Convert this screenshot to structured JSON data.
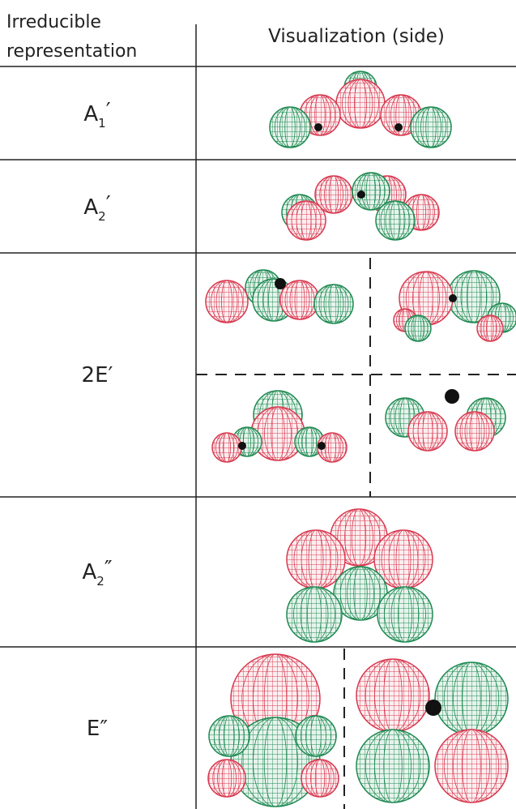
{
  "header": {
    "column_1": [
      "Irreducible",
      "representation"
    ],
    "column_2": "Visualization (side)"
  },
  "rows": [
    {
      "label": "A",
      "subscript": "1",
      "prime": "′"
    },
    {
      "label": "A",
      "subscript": "2",
      "prime": "′"
    },
    {
      "label": "2E",
      "prime": "′"
    },
    {
      "label": "A",
      "subscript": "2",
      "prime": "″"
    },
    {
      "label": "E",
      "prime": "″"
    }
  ]
}
